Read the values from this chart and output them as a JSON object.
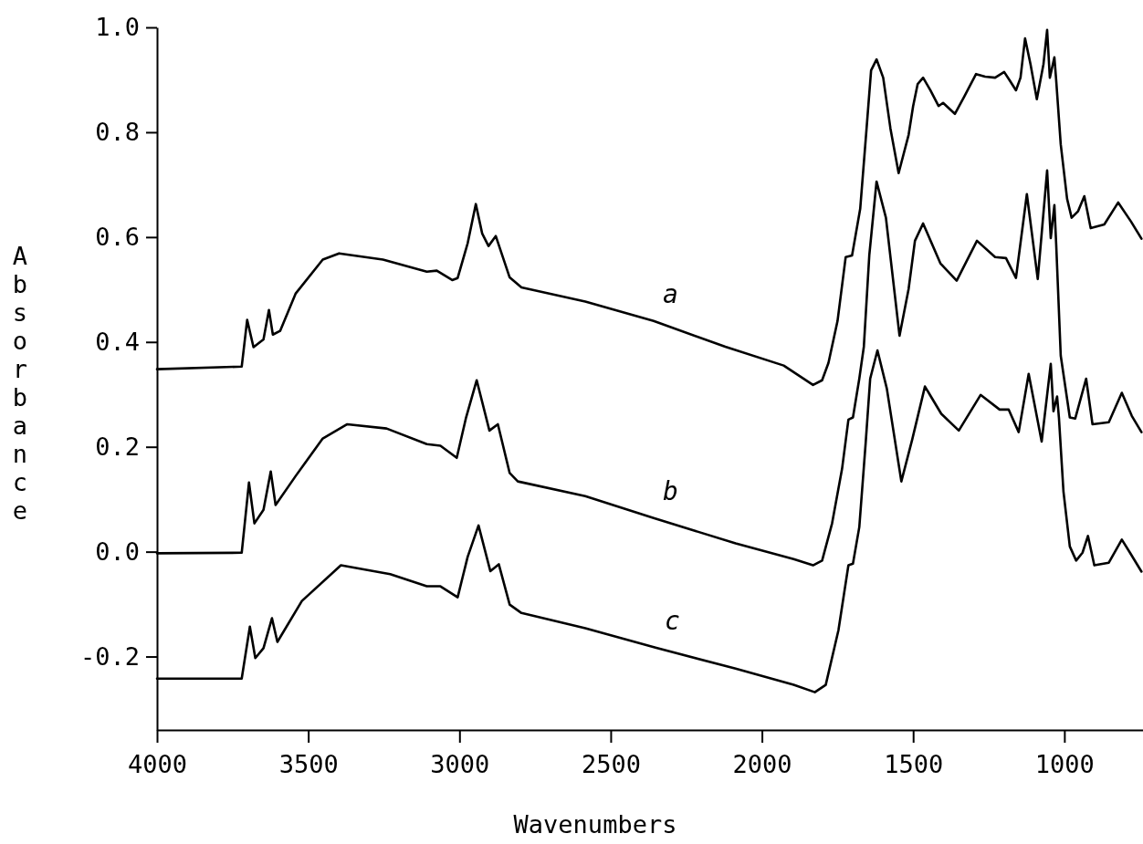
{
  "chart_data": {
    "type": "line",
    "xlabel": "Wavenumbers",
    "ylabel": "Absorbance",
    "xlim": [
      4000,
      740
    ],
    "ylim": [
      -0.34,
      1.0
    ],
    "xticks": [
      4000,
      3500,
      3000,
      2500,
      2000,
      1500,
      1000
    ],
    "yticks": [
      {
        "value": -0.2,
        "label": "-0.2"
      },
      {
        "value": 0,
        "label": "0.0"
      },
      0.2,
      0.4,
      0.6,
      0.8,
      {
        "value": 1,
        "label": "1.0"
      }
    ],
    "series": [
      {
        "name": "a",
        "color": "#000000",
        "x": [
          4000,
          3720,
          3702,
          3681,
          3648,
          3630,
          3617,
          3593,
          3542,
          3452,
          3398,
          3253,
          3108,
          3075,
          3024,
          3006,
          2973,
          2946,
          2925,
          2904,
          2880,
          2834,
          2795,
          2584,
          2358,
          2121,
          1928,
          1831,
          1801,
          1780,
          1750,
          1723,
          1702,
          1675,
          1654,
          1639,
          1621,
          1599,
          1575,
          1548,
          1515,
          1500,
          1485,
          1467,
          1443,
          1416,
          1401,
          1362,
          1331,
          1292,
          1262,
          1229,
          1199,
          1181,
          1160,
          1145,
          1130,
          1112,
          1091,
          1069,
          1057,
          1048,
          1033,
          1027,
          1012,
          991,
          976,
          955,
          934,
          913,
          868,
          822,
          780,
          745
        ],
        "values": [
          0.348,
          0.353,
          0.442,
          0.39,
          0.405,
          0.461,
          0.414,
          0.421,
          0.492,
          0.557,
          0.569,
          0.557,
          0.534,
          0.536,
          0.518,
          0.522,
          0.588,
          0.663,
          0.607,
          0.583,
          0.602,
          0.523,
          0.504,
          0.477,
          0.44,
          0.391,
          0.355,
          0.318,
          0.327,
          0.36,
          0.44,
          0.562,
          0.565,
          0.654,
          0.807,
          0.918,
          0.939,
          0.904,
          0.807,
          0.722,
          0.795,
          0.85,
          0.892,
          0.904,
          0.88,
          0.85,
          0.856,
          0.835,
          0.868,
          0.911,
          0.906,
          0.904,
          0.915,
          0.899,
          0.88,
          0.904,
          0.979,
          0.93,
          0.863,
          0.93,
          0.995,
          0.904,
          0.943,
          0.899,
          0.777,
          0.673,
          0.637,
          0.649,
          0.678,
          0.617,
          0.624,
          0.666,
          0.63,
          0.597
        ]
      },
      {
        "name": "b",
        "color": "#000000",
        "x": [
          4000,
          3720,
          3696,
          3678,
          3648,
          3624,
          3608,
          3542,
          3452,
          3371,
          3241,
          3108,
          3063,
          3009,
          2979,
          2943,
          2901,
          2873,
          2834,
          2807,
          2584,
          2358,
          2087,
          1895,
          1831,
          1801,
          1768,
          1735,
          1714,
          1699,
          1678,
          1663,
          1645,
          1621,
          1590,
          1545,
          1515,
          1494,
          1467,
          1410,
          1356,
          1289,
          1229,
          1193,
          1160,
          1124,
          1088,
          1057,
          1045,
          1033,
          1027,
          1012,
          982,
          964,
          928,
          907,
          853,
          810,
          777,
          745
        ],
        "values": [
          -0.003,
          -0.002,
          0.132,
          0.054,
          0.08,
          0.153,
          0.089,
          0.144,
          0.216,
          0.243,
          0.235,
          0.205,
          0.202,
          0.179,
          0.254,
          0.327,
          0.231,
          0.243,
          0.15,
          0.134,
          0.106,
          0.064,
          0.016,
          -0.014,
          -0.026,
          -0.017,
          0.054,
          0.158,
          0.252,
          0.256,
          0.33,
          0.391,
          0.565,
          0.706,
          0.637,
          0.412,
          0.501,
          0.593,
          0.626,
          0.55,
          0.517,
          0.593,
          0.562,
          0.56,
          0.522,
          0.682,
          0.52,
          0.727,
          0.598,
          0.661,
          0.586,
          0.374,
          0.256,
          0.254,
          0.33,
          0.243,
          0.247,
          0.303,
          0.259,
          0.228
        ]
      },
      {
        "name": "c",
        "color": "#000000",
        "x": [
          4000,
          3720,
          3693,
          3675,
          3648,
          3620,
          3602,
          3521,
          3392,
          3229,
          3108,
          3063,
          3006,
          2973,
          2937,
          2898,
          2870,
          2834,
          2795,
          2584,
          2352,
          2087,
          1895,
          1825,
          1789,
          1747,
          1714,
          1699,
          1678,
          1657,
          1642,
          1618,
          1587,
          1539,
          1503,
          1461,
          1407,
          1349,
          1277,
          1214,
          1184,
          1151,
          1118,
          1075,
          1045,
          1036,
          1024,
          1018,
          1003,
          982,
          961,
          940,
          922,
          901,
          853,
          810,
          783,
          745
        ],
        "values": [
          -0.242,
          -0.242,
          -0.143,
          -0.203,
          -0.184,
          -0.127,
          -0.172,
          -0.094,
          -0.026,
          -0.043,
          -0.066,
          -0.066,
          -0.087,
          -0.01,
          0.05,
          -0.037,
          -0.024,
          -0.101,
          -0.117,
          -0.146,
          -0.183,
          -0.223,
          -0.254,
          -0.268,
          -0.254,
          -0.15,
          -0.026,
          -0.023,
          0.047,
          0.207,
          0.33,
          0.384,
          0.311,
          0.134,
          0.214,
          0.315,
          0.263,
          0.231,
          0.299,
          0.271,
          0.271,
          0.228,
          0.339,
          0.21,
          0.358,
          0.268,
          0.296,
          0.256,
          0.115,
          0.01,
          -0.017,
          -0.002,
          0.03,
          -0.026,
          -0.021,
          0.023,
          -0.002,
          -0.038
        ]
      }
    ]
  }
}
